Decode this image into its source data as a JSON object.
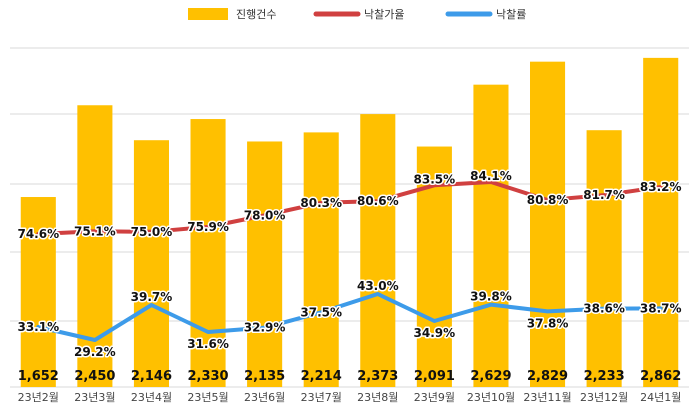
{
  "chart_data": {
    "type": "bar+line",
    "title": "",
    "xlabel": "",
    "ylabel": "",
    "categories": [
      "23년2월",
      "23년3월",
      "23년4월",
      "23년5월",
      "23년6월",
      "23년7월",
      "23년8월",
      "23년9월",
      "23년10월",
      "23년11월",
      "23년12월",
      "24년1월"
    ],
    "legend_position": "top",
    "grid": true,
    "bars": {
      "name": "진행건수",
      "color": "#FFC000",
      "values": [
        1652,
        2450,
        2146,
        2330,
        2135,
        2214,
        2373,
        2091,
        2629,
        2829,
        2233,
        2862
      ],
      "labels": [
        "1,652",
        "2,450",
        "2,146",
        "2,330",
        "2,135",
        "2,214",
        "2,373",
        "2,091",
        "2,629",
        "2,829",
        "2,233",
        "2,862"
      ],
      "ylim": [
        0,
        3000
      ]
    },
    "lines": [
      {
        "name": "낙찰가율",
        "color": "#D04040",
        "values": [
          74.6,
          75.1,
          75.0,
          75.9,
          78.0,
          80.3,
          80.6,
          83.5,
          84.1,
          80.8,
          81.7,
          83.2
        ],
        "labels": [
          "74.6%",
          "75.1%",
          "75.0%",
          "75.9%",
          "78.0%",
          "80.3%",
          "80.6%",
          "83.5%",
          "84.1%",
          "80.8%",
          "81.7%",
          "83.2%"
        ]
      },
      {
        "name": "낙찰률",
        "color": "#3D9BE9",
        "values": [
          33.1,
          29.2,
          39.7,
          31.6,
          32.9,
          37.5,
          43.0,
          34.9,
          39.8,
          37.8,
          38.6,
          38.7
        ],
        "labels": [
          "33.1%",
          "29.2%",
          "39.7%",
          "31.6%",
          "32.9%",
          "37.5%",
          "43.0%",
          "34.9%",
          "39.8%",
          "37.8%",
          "38.6%",
          "38.7%"
        ]
      }
    ]
  }
}
